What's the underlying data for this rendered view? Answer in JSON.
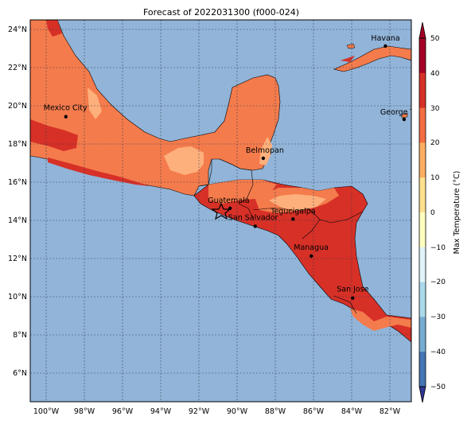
{
  "title": "Forecast of 2022031300 (f000-024)",
  "x_axis": {
    "ticks": [
      "100°W",
      "98°W",
      "96°W",
      "94°W",
      "92°W",
      "90°W",
      "88°W",
      "86°W",
      "84°W",
      "82°W"
    ],
    "range": [
      "101°W",
      "81°W"
    ]
  },
  "y_axis": {
    "ticks": [
      "6°N",
      "8°N",
      "10°N",
      "12°N",
      "14°N",
      "16°N",
      "18°N",
      "20°N",
      "22°N",
      "24°N"
    ],
    "range": [
      "4.5°N",
      "24.5°N"
    ]
  },
  "colorbar": {
    "label": "Max Temperature (°C)",
    "ticks": [
      "50",
      "40",
      "30",
      "20",
      "10",
      "0",
      "−10",
      "−20",
      "−30",
      "−40",
      "−50"
    ]
  },
  "cities": [
    {
      "name": "Havana",
      "lon": -82.36,
      "lat": 23.13
    },
    {
      "name": "Mexico City",
      "lon": -99.13,
      "lat": 19.43
    },
    {
      "name": "George Tov",
      "lon": -81.38,
      "lat": 19.29
    },
    {
      "name": "Belmopan",
      "lon": -88.77,
      "lat": 17.25
    },
    {
      "name": "Guatemala",
      "lon": -90.51,
      "lat": 14.63
    },
    {
      "name": "Tegucigalpa",
      "lon": -87.21,
      "lat": 14.07
    },
    {
      "name": "San Salvador",
      "lon": -89.19,
      "lat": 13.69
    },
    {
      "name": "Managua",
      "lon": -86.25,
      "lat": 12.13
    },
    {
      "name": "San Jose",
      "lon": -84.08,
      "lat": 9.93
    }
  ],
  "colors": {
    "ocean": "#91b4d8",
    "land_20_30": "#f47b4c",
    "land_10_20": "#fdb07b",
    "land_30_40": "#d73027",
    "colorbar_levels": [
      "#313695",
      "#4575b4",
      "#74add1",
      "#abd9e9",
      "#e0f3f8",
      "#ffffbf",
      "#fee090",
      "#fdae61",
      "#f46d43",
      "#d73027",
      "#a50026"
    ]
  }
}
